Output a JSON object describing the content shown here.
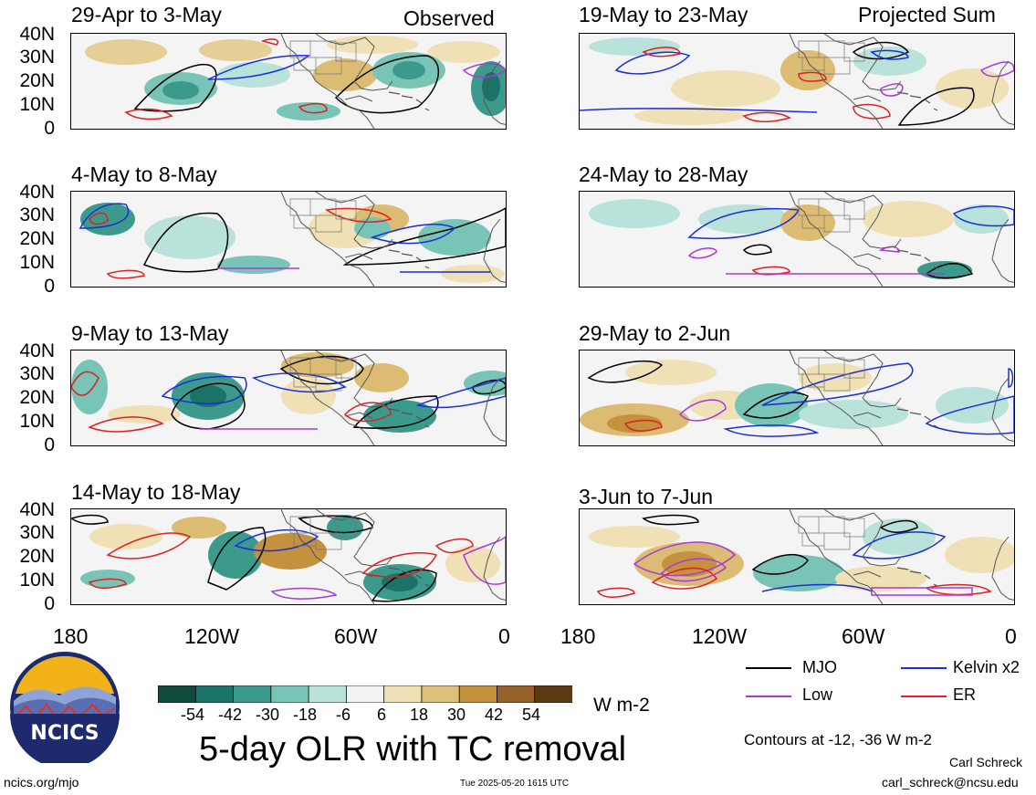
{
  "column_headers": {
    "left": "Observed",
    "right": "Projected Sum"
  },
  "panels_left": [
    {
      "title": "29-Apr to 3-May"
    },
    {
      "title": "4-May to 8-May"
    },
    {
      "title": "9-May to 13-May"
    },
    {
      "title": "14-May to 18-May"
    }
  ],
  "panels_right": [
    {
      "title": "19-May to 23-May"
    },
    {
      "title": "24-May to 28-May"
    },
    {
      "title": "29-May to 2-Jun"
    },
    {
      "title": "3-Jun to 7-Jun"
    }
  ],
  "lat_labels": [
    "40N",
    "30N",
    "20N",
    "10N",
    "0"
  ],
  "lon_labels": [
    "180",
    "120W",
    "60W",
    "0"
  ],
  "colorbar": {
    "ticks": [
      "-54",
      "-42",
      "-30",
      "-18",
      "-6",
      "6",
      "18",
      "30",
      "42",
      "54"
    ],
    "units": "W m-2",
    "colors": [
      "#0f4a3c",
      "#1b7266",
      "#3c9a8c",
      "#78c4b6",
      "#b9e2da",
      "#f3f3f3",
      "#efe0b5",
      "#ddc07a",
      "#c4913e",
      "#94612a",
      "#5c3a12"
    ]
  },
  "legend": [
    {
      "name": "MJO",
      "color": "#000000"
    },
    {
      "name": "Kelvin x2",
      "color": "#1a2fd6"
    },
    {
      "name": "Low",
      "color": "#a63ad8"
    },
    {
      "name": "ER",
      "color": "#e02020"
    }
  ],
  "contour_note": "Contours at -12, -36 W m-2",
  "main_title": "5-day OLR with TC removal",
  "logo_text": "NCICS",
  "footer": {
    "url": "ncics.org/mjo",
    "timestamp": "Tue 2025-05-20 1615 UTC",
    "author": "Carl Schreck",
    "email": "carl_schreck@ncsu.edu"
  }
}
